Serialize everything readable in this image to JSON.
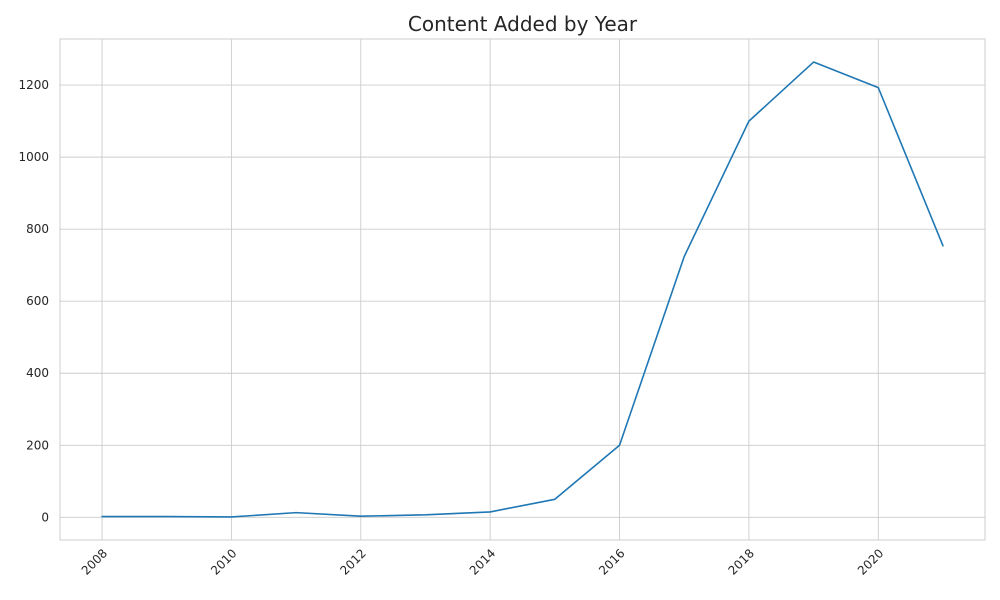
{
  "chart_data": {
    "type": "line",
    "title": "Content Added by Year",
    "xlabel": "",
    "ylabel": "",
    "x": [
      2008,
      2009,
      2010,
      2011,
      2012,
      2013,
      2014,
      2015,
      2016,
      2017,
      2018,
      2019,
      2020,
      2021
    ],
    "series": [
      {
        "values": [
          2,
          2,
          1,
          13,
          3,
          7,
          15,
          50,
          200,
          724,
          1100,
          1264,
          1193,
          754
        ],
        "color": "#1f77b4"
      }
    ],
    "xlim": [
      2007.35,
      2021.65
    ],
    "ylim": [
      -63,
      1328
    ],
    "xticks": [
      2008,
      2010,
      2012,
      2014,
      2016,
      2018,
      2020
    ],
    "yticks": [
      0,
      200,
      400,
      600,
      800,
      1000,
      1200
    ],
    "xtick_labels": [
      "2008",
      "2010",
      "2012",
      "2014",
      "2016",
      "2018",
      "2020"
    ],
    "ytick_labels": [
      "0",
      "200",
      "400",
      "600",
      "800",
      "1000",
      "1200"
    ],
    "grid": true,
    "style": "whitegrid",
    "xtick_rotation": 45
  }
}
